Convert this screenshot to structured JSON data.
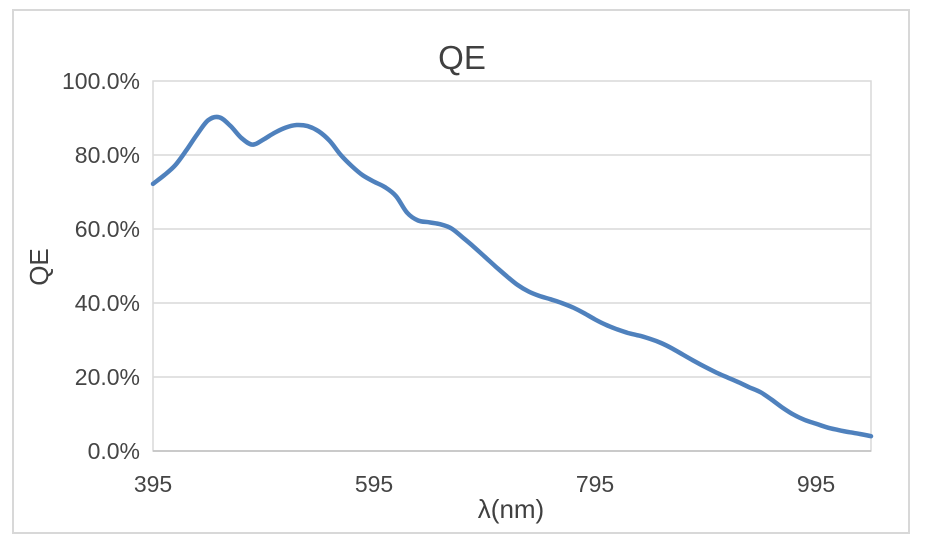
{
  "chart": {
    "title": "QE",
    "x_axis_title": "λ(nm)",
    "y_axis_title": "QE",
    "y_tick_labels": [
      "100.0%",
      "80.0%",
      "60.0%",
      "40.0%",
      "20.0%",
      "0.0%"
    ],
    "x_tick_labels": [
      "395",
      "595",
      "795",
      "995"
    ]
  },
  "colors": {
    "line": "#4F81BD",
    "gridline": "#D9D9D9",
    "axis_line": "#BFBFBF",
    "plot_border": "#D9D9D9",
    "text": "#454545",
    "title_text": "#404040",
    "chart_border": "#D8D8D8"
  },
  "chart_data": {
    "type": "line",
    "title": "QE",
    "xlabel": "λ(nm)",
    "ylabel": "QE",
    "legend": "none",
    "grid": "horizontal",
    "xlim": [
      395,
      1045
    ],
    "ylim_percent": [
      0,
      100
    ],
    "x_ticks": [
      395,
      595,
      795,
      995
    ],
    "y_ticks_percent": [
      0,
      20,
      40,
      60,
      80,
      100
    ],
    "y_tick_format": "percent_one_decimal",
    "x": [
      395,
      405,
      415,
      425,
      435,
      445,
      455,
      465,
      475,
      485,
      495,
      505,
      515,
      525,
      535,
      545,
      555,
      565,
      575,
      585,
      595,
      605,
      615,
      625,
      635,
      645,
      655,
      665,
      675,
      685,
      695,
      705,
      715,
      725,
      735,
      745,
      755,
      765,
      775,
      785,
      795,
      805,
      815,
      825,
      835,
      845,
      855,
      865,
      875,
      885,
      895,
      905,
      915,
      925,
      935,
      945,
      955,
      965,
      975,
      985,
      995,
      1005,
      1015,
      1025,
      1035,
      1045
    ],
    "series": [
      {
        "name": "QE",
        "values_percent": [
          72.2,
          74.5,
          77.2,
          81.2,
          85.6,
          89.4,
          90.2,
          87.9,
          84.6,
          82.8,
          84.2,
          86.0,
          87.4,
          88.1,
          87.8,
          86.4,
          83.8,
          80.0,
          77.0,
          74.5,
          72.8,
          71.3,
          68.9,
          64.4,
          62.3,
          61.8,
          61.3,
          60.2,
          57.8,
          55.3,
          52.6,
          49.9,
          47.3,
          44.9,
          43.1,
          41.9,
          41.0,
          40.0,
          38.8,
          37.3,
          35.6,
          34.1,
          32.9,
          31.9,
          31.2,
          30.3,
          29.2,
          27.7,
          26.0,
          24.3,
          22.7,
          21.2,
          19.9,
          18.6,
          17.2,
          15.9,
          13.9,
          11.7,
          9.8,
          8.4,
          7.4,
          6.4,
          5.7,
          5.1,
          4.6,
          4.0
        ]
      }
    ]
  }
}
